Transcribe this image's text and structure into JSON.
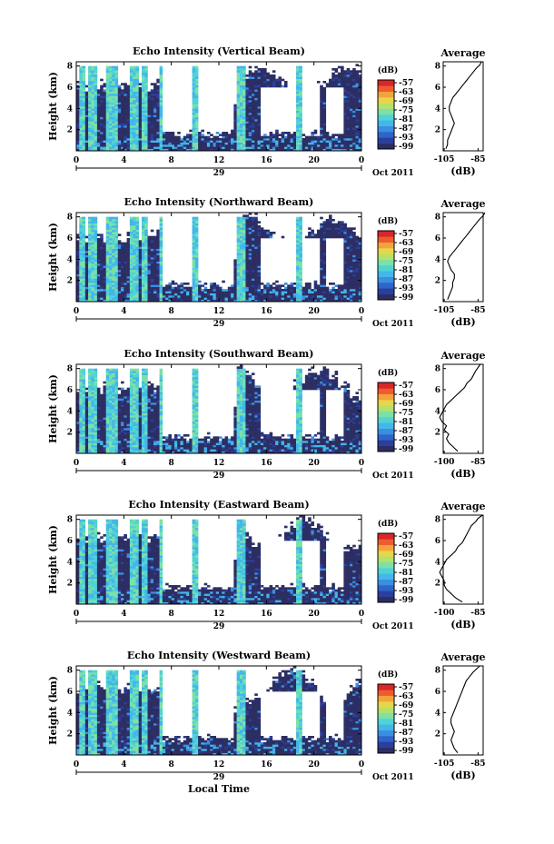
{
  "colors": {
    "background_echo": "#2c2e63",
    "colormap": [
      "#2c2e63",
      "#2a3f9e",
      "#2f64c8",
      "#3b8fe0",
      "#43b6ea",
      "#4fd3d6",
      "#7de0a6",
      "#b5e06a",
      "#e7d64a",
      "#f3a23c",
      "#ee5b2e",
      "#d9262a"
    ]
  },
  "chart_data": [
    {
      "type": "heatmap",
      "title": "Echo Intensity (Vertical Beam)",
      "ylabel": "Height (km)",
      "yticks": [
        "2",
        "4",
        "6",
        "8"
      ],
      "ylim": [
        0,
        8.4
      ],
      "xticks": [
        "0",
        "4",
        "8",
        "12",
        "16",
        "20",
        "0"
      ],
      "xlim": [
        0,
        24
      ],
      "date_label": "29",
      "month_label": "Oct 2011",
      "colorbar": {
        "unit": "(dB)",
        "ticks": [
          "-57",
          "-63",
          "-69",
          "-75",
          "-81",
          "-87",
          "-93",
          "-99"
        ]
      },
      "average_profile": {
        "title": "Average",
        "xlabel": "(dB)",
        "xticks": [
          "-105",
          "-85"
        ],
        "yticks": [
          "2",
          "4",
          "6",
          "8"
        ],
        "x": [
          -104,
          -103,
          -103,
          -102,
          -101,
          -100,
          -99,
          -100,
          -101,
          -102,
          -102,
          -101,
          -100,
          -98,
          -96,
          -94,
          -92,
          -90,
          -88,
          -86,
          -84,
          -83
        ],
        "y": [
          0.2,
          0.6,
          1.0,
          1.4,
          1.8,
          2.2,
          2.6,
          3.0,
          3.4,
          3.8,
          4.2,
          4.6,
          5.0,
          5.4,
          5.8,
          6.2,
          6.6,
          7.0,
          7.4,
          7.8,
          8.1,
          8.4
        ]
      }
    },
    {
      "type": "heatmap",
      "title": "Echo Intensity (Northward Beam)",
      "ylabel": "Height (km)",
      "yticks": [
        "2",
        "4",
        "6",
        "8"
      ],
      "ylim": [
        0,
        8.4
      ],
      "xticks": [
        "0",
        "4",
        "8",
        "12",
        "16",
        "20",
        "0"
      ],
      "xlim": [
        0,
        24
      ],
      "date_label": "29",
      "month_label": "Oct 2011",
      "colorbar": {
        "unit": "(dB)",
        "ticks": [
          "-57",
          "-63",
          "-69",
          "-75",
          "-81",
          "-87",
          "-93",
          "-99"
        ]
      },
      "average_profile": {
        "title": "Average",
        "xlabel": "(dB)",
        "xticks": [
          "-105",
          "-85"
        ],
        "yticks": [
          "2",
          "4",
          "6",
          "8"
        ],
        "x": [
          -103,
          -102,
          -101,
          -100,
          -100,
          -99,
          -99,
          -101,
          -102,
          -103,
          -102,
          -100,
          -98,
          -96,
          -94,
          -92,
          -90,
          -88,
          -86,
          -84,
          -82,
          -81
        ],
        "y": [
          0.2,
          0.6,
          1.0,
          1.4,
          1.8,
          2.2,
          2.6,
          3.0,
          3.4,
          3.8,
          4.2,
          4.6,
          5.0,
          5.4,
          5.8,
          6.2,
          6.6,
          7.0,
          7.4,
          7.8,
          8.1,
          8.4
        ]
      }
    },
    {
      "type": "heatmap",
      "title": "Echo Intensity (Southward Beam)",
      "ylabel": "Height (km)",
      "yticks": [
        "2",
        "4",
        "6",
        "8"
      ],
      "ylim": [
        0,
        8.4
      ],
      "xticks": [
        "0",
        "4",
        "8",
        "12",
        "16",
        "20",
        "0"
      ],
      "xlim": [
        0,
        24
      ],
      "date_label": "29",
      "month_label": "Oct 2011",
      "colorbar": {
        "unit": "(dB)",
        "ticks": [
          "-57",
          "-63",
          "-69",
          "-75",
          "-81",
          "-87",
          "-93",
          "-99"
        ]
      },
      "average_profile": {
        "title": "Average",
        "xlabel": "(dB)",
        "xticks": [
          "-100",
          "-85"
        ],
        "yticks": [
          "2",
          "4",
          "6",
          "8"
        ],
        "x": [
          -94,
          -96,
          -98,
          -99,
          -98,
          -100,
          -99,
          -101,
          -102,
          -101,
          -100,
          -99,
          -97,
          -95,
          -93,
          -91,
          -90,
          -88,
          -87,
          -86,
          -85,
          -84
        ],
        "y": [
          0.2,
          0.6,
          1.0,
          1.4,
          1.8,
          2.2,
          2.6,
          3.0,
          3.4,
          3.8,
          4.2,
          4.6,
          5.0,
          5.4,
          5.8,
          6.2,
          6.6,
          7.0,
          7.4,
          7.8,
          8.1,
          8.4
        ]
      }
    },
    {
      "type": "heatmap",
      "title": "Echo Intensity (Eastward Beam)",
      "ylabel": "Height (km)",
      "yticks": [
        "2",
        "4",
        "6",
        "8"
      ],
      "ylim": [
        0,
        8.4
      ],
      "xticks": [
        "0",
        "4",
        "8",
        "12",
        "16",
        "20",
        "0"
      ],
      "xlim": [
        0,
        24
      ],
      "date_label": "29",
      "month_label": "Oct 2011",
      "colorbar": {
        "unit": "(dB)",
        "ticks": [
          "-57",
          "-63",
          "-69",
          "-75",
          "-81",
          "-87",
          "-93",
          "-99"
        ]
      },
      "average_profile": {
        "title": "Average",
        "xlabel": "(dB)",
        "xticks": [
          "-100",
          "-85"
        ],
        "yticks": [
          "2",
          "4",
          "6",
          "8"
        ],
        "x": [
          -92,
          -95,
          -97,
          -99,
          -100,
          -100,
          -101,
          -102,
          -101,
          -100,
          -99,
          -97,
          -95,
          -94,
          -92,
          -91,
          -90,
          -89,
          -88,
          -86,
          -85,
          -83
        ],
        "y": [
          0.2,
          0.6,
          1.0,
          1.4,
          1.8,
          2.2,
          2.6,
          3.0,
          3.4,
          3.8,
          4.2,
          4.6,
          5.0,
          5.4,
          5.8,
          6.2,
          6.6,
          7.0,
          7.4,
          7.8,
          8.1,
          8.4
        ]
      }
    },
    {
      "type": "heatmap",
      "title": "Echo Intensity (Westward Beam)",
      "ylabel": "Height (km)",
      "yticks": [
        "2",
        "4",
        "6",
        "8"
      ],
      "ylim": [
        0,
        8.4
      ],
      "xticks": [
        "0",
        "4",
        "8",
        "12",
        "16",
        "20",
        "0"
      ],
      "xlim": [
        0,
        24
      ],
      "date_label": "29",
      "month_label": "Oct 2011",
      "xlabel": "Local Time",
      "colorbar": {
        "unit": "(dB)",
        "ticks": [
          "-57",
          "-63",
          "-69",
          "-75",
          "-81",
          "-87",
          "-93",
          "-99"
        ]
      },
      "average_profile": {
        "title": "Average",
        "xlabel": "(dB)",
        "xticks": [
          "-105",
          "-85"
        ],
        "yticks": [
          "2",
          "4",
          "6",
          "8"
        ],
        "x": [
          -97,
          -99,
          -100,
          -101,
          -100,
          -99,
          -100,
          -101,
          -101,
          -100,
          -99,
          -98,
          -97,
          -96,
          -95,
          -94,
          -93,
          -92,
          -90,
          -88,
          -86,
          -84
        ],
        "y": [
          0.2,
          0.6,
          1.0,
          1.4,
          1.8,
          2.2,
          2.6,
          3.0,
          3.4,
          3.8,
          4.2,
          4.6,
          5.0,
          5.4,
          5.8,
          6.2,
          6.6,
          7.0,
          7.4,
          7.8,
          8.1,
          8.4
        ]
      }
    }
  ]
}
